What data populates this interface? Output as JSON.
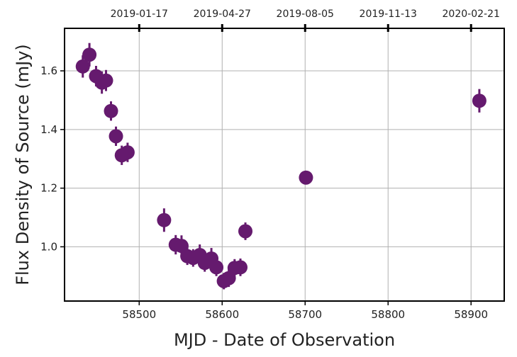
{
  "chart_data": {
    "type": "scatter",
    "xlabel": "MJD - Date of Observation",
    "ylabel": "Flux Density of Source (mJy)",
    "xlim": [
      58410,
      58940
    ],
    "ylim": [
      0.815,
      1.745
    ],
    "grid": true,
    "x_ticks": [
      58500,
      58600,
      58700,
      58800,
      58900
    ],
    "y_ticks": [
      1.0,
      1.2,
      1.4,
      1.6
    ],
    "y_tick_labels": [
      "1.0",
      "1.2",
      "1.4",
      "1.6"
    ],
    "top_axis": {
      "ticks": [
        58500,
        58600,
        58700,
        58800,
        58900
      ],
      "labels": [
        "2019-01-17",
        "2019-04-27",
        "2019-08-05",
        "2019-11-13",
        "2020-02-21"
      ]
    },
    "marker_color": "#651a6e",
    "points": [
      {
        "x": 58432,
        "y": 1.615,
        "yerr": 0.038
      },
      {
        "x": 58440,
        "y": 1.655,
        "yerr": 0.04
      },
      {
        "x": 58448,
        "y": 1.582,
        "yerr": 0.035
      },
      {
        "x": 58455,
        "y": 1.56,
        "yerr": 0.038
      },
      {
        "x": 58460,
        "y": 1.567,
        "yerr": 0.036
      },
      {
        "x": 58466,
        "y": 1.463,
        "yerr": 0.033
      },
      {
        "x": 58472,
        "y": 1.377,
        "yerr": 0.033
      },
      {
        "x": 58479,
        "y": 1.312,
        "yerr": 0.033
      },
      {
        "x": 58486,
        "y": 1.322,
        "yerr": 0.033
      },
      {
        "x": 58530,
        "y": 1.091,
        "yerr": 0.04
      },
      {
        "x": 58544,
        "y": 1.007,
        "yerr": 0.033
      },
      {
        "x": 58551,
        "y": 1.003,
        "yerr": 0.036
      },
      {
        "x": 58558,
        "y": 0.968,
        "yerr": 0.03
      },
      {
        "x": 58565,
        "y": 0.962,
        "yerr": 0.03
      },
      {
        "x": 58573,
        "y": 0.972,
        "yerr": 0.036
      },
      {
        "x": 58579,
        "y": 0.945,
        "yerr": 0.03
      },
      {
        "x": 58587,
        "y": 0.96,
        "yerr": 0.036
      },
      {
        "x": 58593,
        "y": 0.93,
        "yerr": 0.03
      },
      {
        "x": 58602,
        "y": 0.883,
        "yerr": 0.028
      },
      {
        "x": 58608,
        "y": 0.893,
        "yerr": 0.03
      },
      {
        "x": 58615,
        "y": 0.928,
        "yerr": 0.03
      },
      {
        "x": 58622,
        "y": 0.93,
        "yerr": 0.03
      },
      {
        "x": 58628,
        "y": 1.053,
        "yerr": 0.03
      },
      {
        "x": 58701,
        "y": 1.236,
        "yerr": 0.02
      },
      {
        "x": 58910,
        "y": 1.498,
        "yerr": 0.04
      }
    ]
  }
}
